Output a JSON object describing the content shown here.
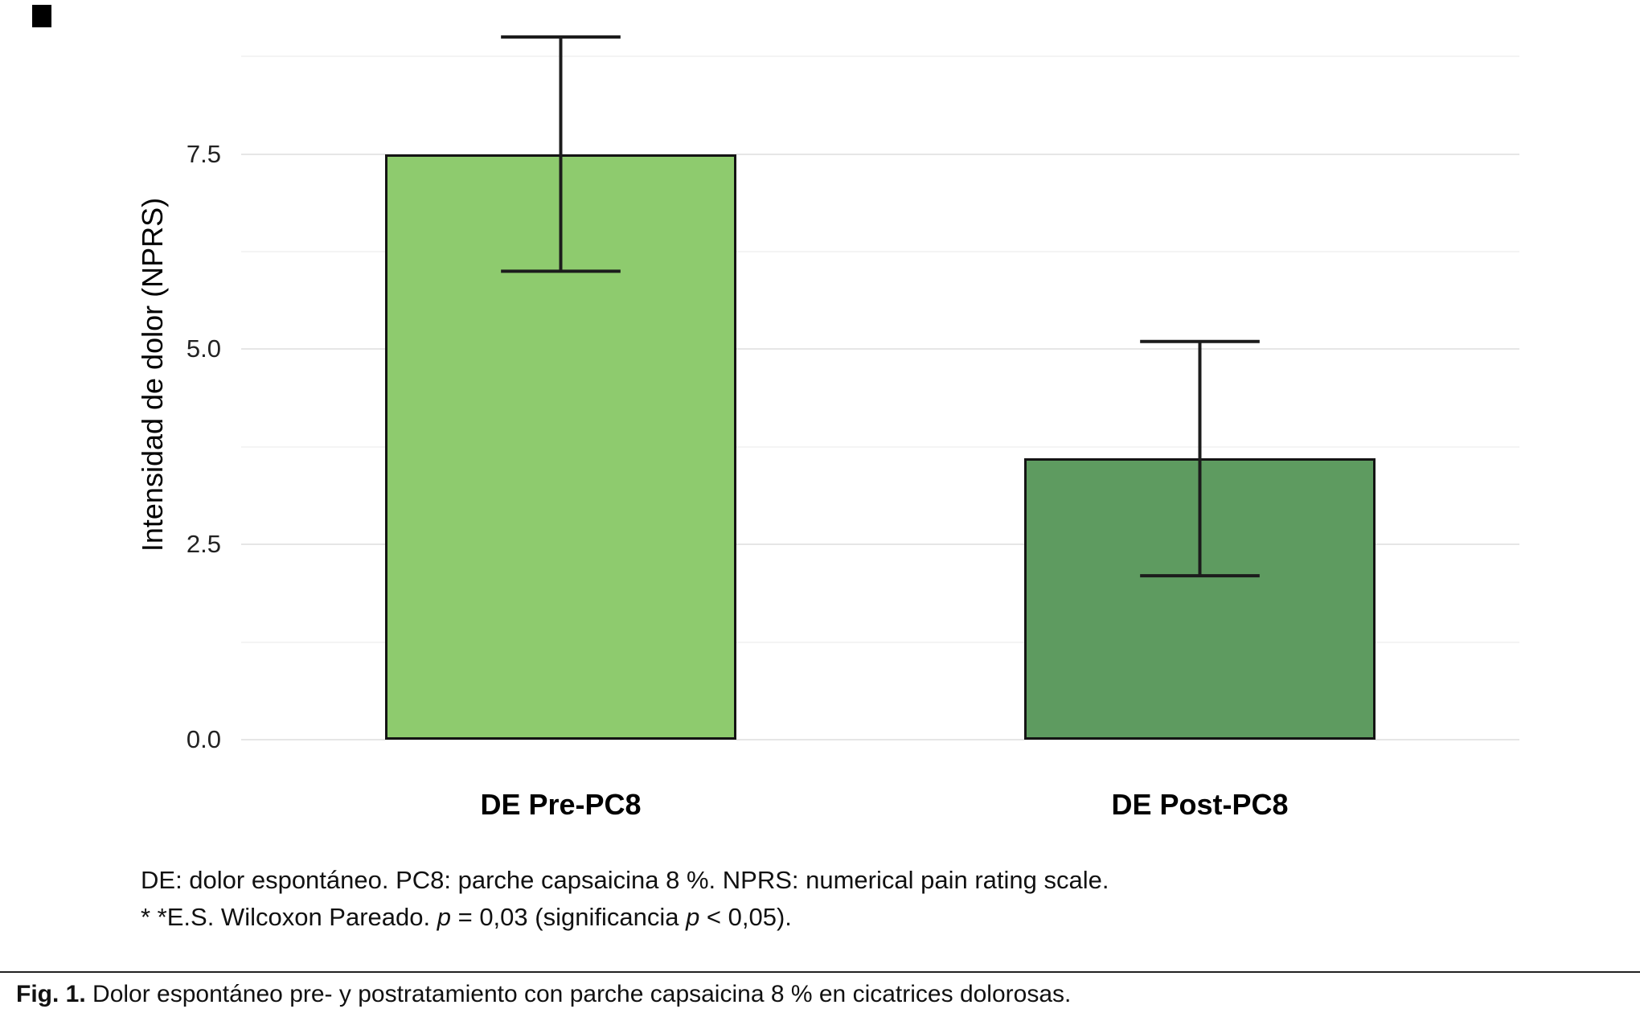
{
  "chart_data": {
    "type": "bar",
    "title": "",
    "categories": [
      "DE Pre-PC8",
      "DE Post-PC8"
    ],
    "values": [
      7.5,
      3.6
    ],
    "error_bars": [
      {
        "low": 6.0,
        "high": 9.0
      },
      {
        "low": 2.1,
        "high": 5.1
      }
    ],
    "bar_colors": [
      "#8ecb6e",
      "#5e9b60"
    ],
    "xlabel": "",
    "ylabel": "Intensidad de dolor (NPRS)",
    "yticks": [
      0,
      2.5,
      5,
      7.5
    ],
    "yticks_minor": [
      1.25,
      3.75,
      6.25,
      8.75
    ],
    "ylim": [
      0,
      9.35
    ],
    "grid": true,
    "legend": "none"
  },
  "notes": {
    "line1": "DE: dolor espontáneo. PC8: parche capsaicina 8 %. NPRS: numerical pain rating scale.",
    "line2": [
      "* *E.S. Wilcoxon Pareado. ",
      "p",
      " = 0,03 (significancia ",
      "p",
      " < 0,05)."
    ]
  },
  "figure_caption": {
    "label": "Fig. 1.",
    "text": " Dolor espontáneo pre- y postratamiento con parche capsaicina 8 % en cicatrices dolorosas."
  }
}
